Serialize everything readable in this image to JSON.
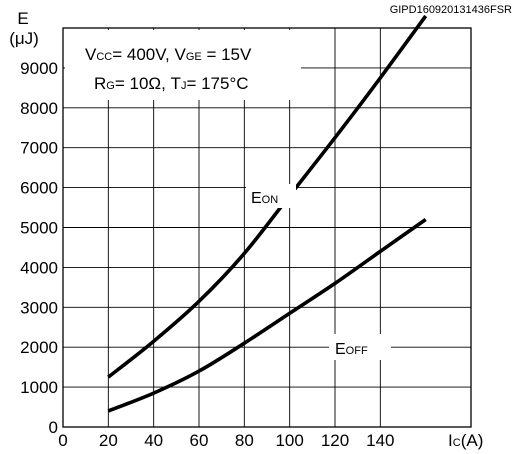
{
  "figure_id": "GIPD160920131436FSR",
  "conditions": {
    "line1": {
      "a_main": "V",
      "a_sub": "CC",
      "a_val": "= 400V, V",
      "b_sub": "GE",
      "b_val": " = 15V"
    },
    "line2": {
      "a_main": "R",
      "a_sub": "G",
      "a_val": "= 10Ω, T",
      "b_sub": "J",
      "b_val": "= 175°C"
    }
  },
  "colors": {
    "line": "#000000",
    "grid": "#000000",
    "background": "#ffffff"
  },
  "chart_data": {
    "type": "line",
    "grid": true,
    "xlim": [
      0,
      180
    ],
    "ylim": [
      0,
      10000
    ],
    "x_ticks": [
      "0",
      "20",
      "40",
      "60",
      "80",
      "100",
      "120",
      "140"
    ],
    "y_ticks": [
      "0",
      "1000",
      "2000",
      "3000",
      "4000",
      "5000",
      "6000",
      "7000",
      "8000",
      "9000"
    ],
    "xlabel": {
      "main": "I",
      "sub": "C",
      "unit": "(A)"
    },
    "ylabel": {
      "symbol": "E",
      "unit": "(μJ)"
    },
    "series": [
      {
        "name": "E",
        "name_sub": "ON",
        "x": [
          20,
          40,
          60,
          80,
          100,
          120,
          140,
          160
        ],
        "y": [
          1250,
          2150,
          3150,
          4350,
          5800,
          7250,
          8750,
          10300
        ]
      },
      {
        "name": "E",
        "name_sub": "OFF",
        "x": [
          20,
          40,
          60,
          80,
          100,
          120,
          140,
          160
        ],
        "y": [
          400,
          850,
          1400,
          2100,
          2850,
          3600,
          4400,
          5200
        ]
      }
    ]
  }
}
